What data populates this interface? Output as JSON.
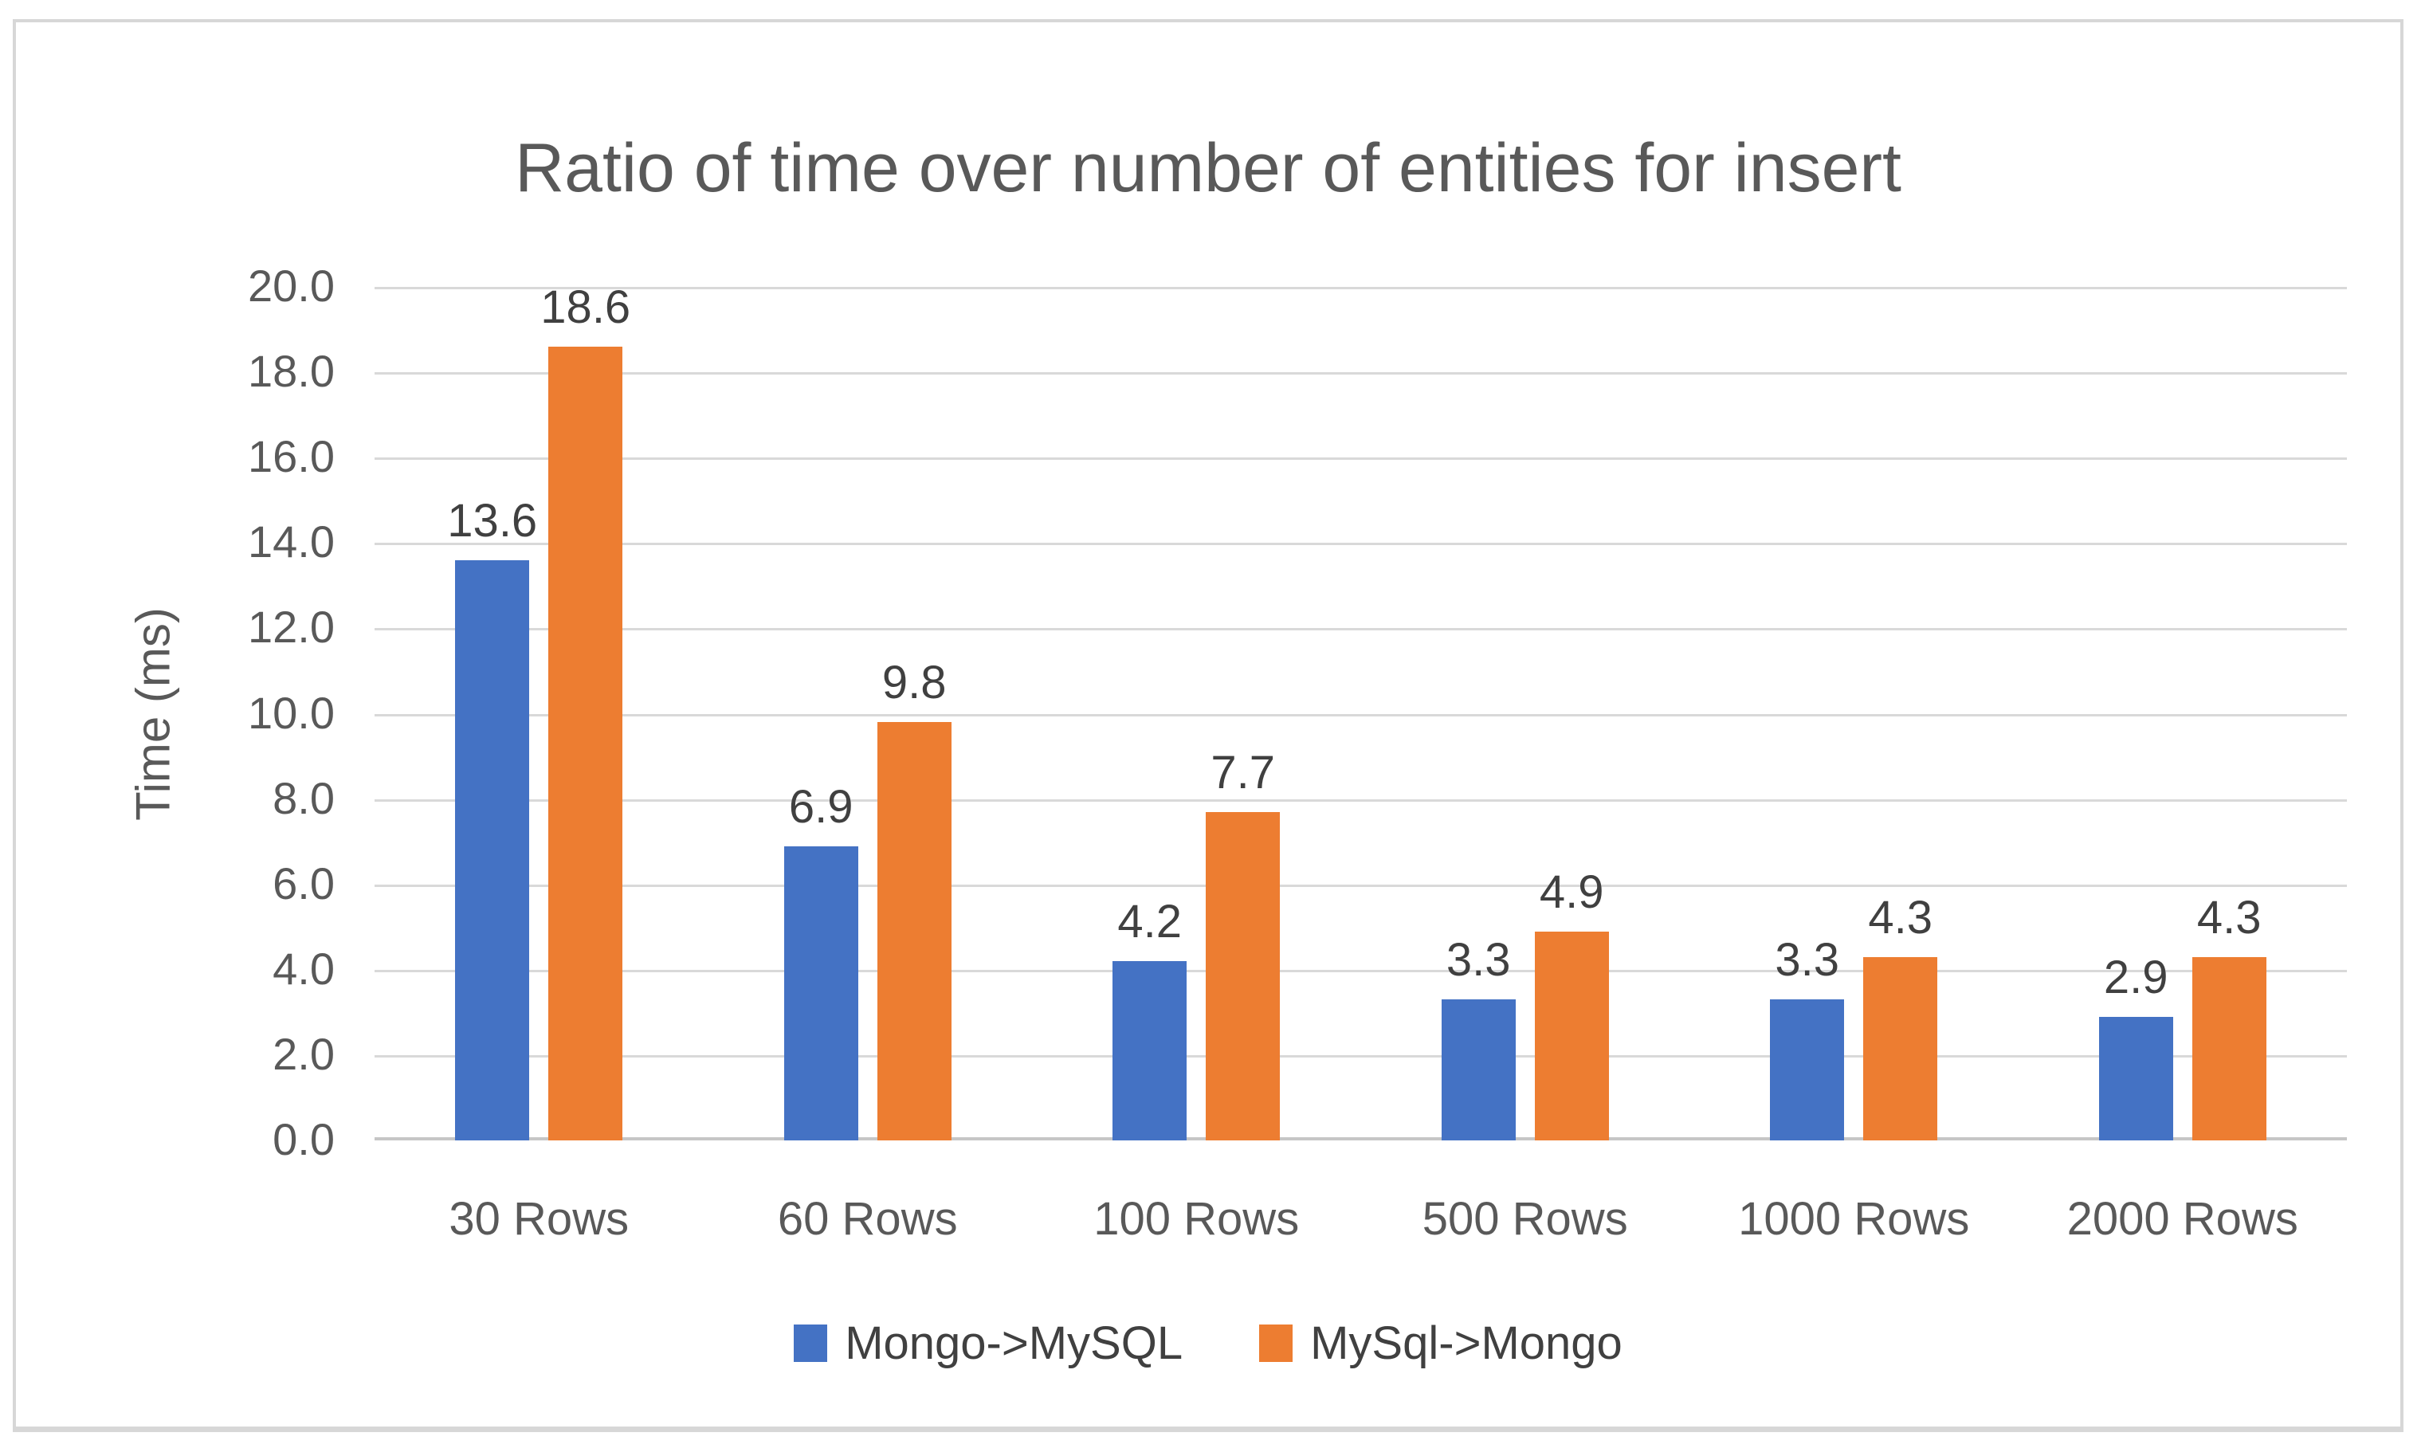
{
  "chart_data": {
    "type": "bar",
    "title": "Ratio of time over number of entities for insert",
    "xlabel": "",
    "ylabel": "Time (ms)",
    "categories": [
      "30 Rows",
      "60 Rows",
      "100 Rows",
      "500 Rows",
      "1000 Rows",
      "2000 Rows"
    ],
    "series": [
      {
        "name": "Mongo->MySQL",
        "color": "#4472C4",
        "values": [
          13.6,
          6.9,
          4.2,
          3.3,
          3.3,
          2.9
        ],
        "labels": [
          "13.6",
          "6.9",
          "4.2",
          "3.3",
          "3.3",
          "2.9"
        ]
      },
      {
        "name": "MySql->Mongo",
        "color": "#ED7D31",
        "values": [
          18.6,
          9.8,
          7.7,
          4.9,
          4.3,
          4.3
        ],
        "labels": [
          "18.6",
          "9.8",
          "7.7",
          "4.9",
          "4.3",
          "4.3"
        ]
      }
    ],
    "ylim": [
      0,
      20
    ],
    "ytick_step": 2,
    "ytick_labels": [
      "20.0",
      "18.0",
      "16.0",
      "14.0",
      "12.0",
      "10.0",
      "8.0",
      "6.0",
      "4.0",
      "2.0",
      "0.0"
    ],
    "grid": true,
    "legend_position": "bottom",
    "data_labels": "outside-end",
    "colors": {
      "series1": "#4472C4",
      "series2": "#ED7D31",
      "gridline": "#D9D9D9",
      "axis_line": "#C6C6C6",
      "axis_text": "#595959",
      "title_text": "#595959",
      "value_label_text": "#404040",
      "legend_text": "#404040",
      "frame_border": "#D7D7D7",
      "background": "#FFFFFF"
    }
  }
}
